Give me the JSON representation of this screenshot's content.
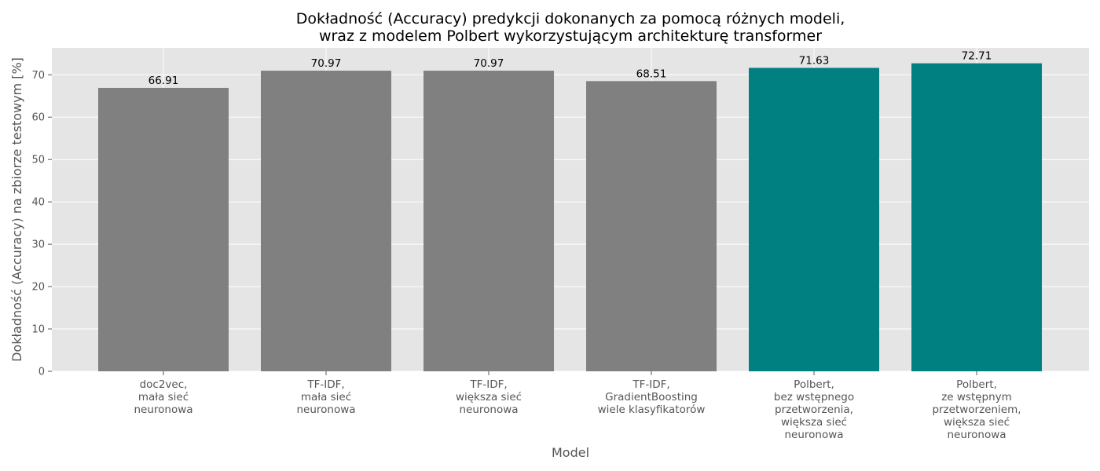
{
  "chart_data": {
    "type": "bar",
    "title": [
      "Dokładność (Accuracy) predykcji dokonanych za pomocą różnych modeli,",
      "wraz z modelem Polbert wykorzystującym architekturę transformer"
    ],
    "xlabel": "Model",
    "ylabel": "Dokładność (Accuracy) na zbiorze testowym [%]",
    "ylim": [
      0,
      76.35
    ],
    "yticks": [
      "0",
      "10",
      "20",
      "30",
      "40",
      "50",
      "60",
      "70"
    ],
    "grid": true,
    "categories": [
      [
        "doc2vec,",
        "mała sieć",
        "neuronowa"
      ],
      [
        "TF-IDF,",
        "mała sieć",
        "neuronowa"
      ],
      [
        "TF-IDF,",
        "większa sieć",
        "neuronowa"
      ],
      [
        "TF-IDF,",
        "GradientBoosting",
        "wiele klasyfikatorów"
      ],
      [
        "Polbert,",
        "bez wstępnego",
        "przetworzenia,",
        "większa sieć",
        "neuronowa"
      ],
      [
        "Polbert,",
        "ze wstępnym",
        "przetworzeniem,",
        "większa sieć",
        "neuronowa"
      ]
    ],
    "values": [
      66.91,
      70.97,
      70.97,
      68.51,
      71.63,
      72.71
    ],
    "value_labels": [
      "66.91",
      "70.97",
      "70.97",
      "68.51",
      "71.63",
      "72.71"
    ],
    "bar_colors": [
      "#808080",
      "#808080",
      "#808080",
      "#808080",
      "#008080",
      "#008080"
    ],
    "plot_background": "#e5e5e5",
    "grid_color": "#ffffff"
  }
}
